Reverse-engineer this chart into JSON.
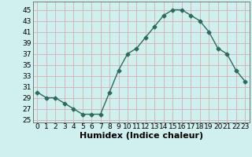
{
  "x": [
    0,
    1,
    2,
    3,
    4,
    5,
    6,
    7,
    8,
    9,
    10,
    11,
    12,
    13,
    14,
    15,
    16,
    17,
    18,
    19,
    20,
    21,
    22,
    23
  ],
  "y": [
    30,
    29,
    29,
    28,
    27,
    26,
    26,
    26,
    30,
    34,
    37,
    38,
    40,
    42,
    44,
    45,
    45,
    44,
    43,
    41,
    38,
    37,
    34,
    32
  ],
  "xlabel": "Humidex (Indice chaleur)",
  "ylim": [
    24.5,
    46.5
  ],
  "xlim": [
    -0.5,
    23.5
  ],
  "yticks": [
    25,
    27,
    29,
    31,
    33,
    35,
    37,
    39,
    41,
    43,
    45
  ],
  "xticks": [
    0,
    1,
    2,
    3,
    4,
    5,
    6,
    7,
    8,
    9,
    10,
    11,
    12,
    13,
    14,
    15,
    16,
    17,
    18,
    19,
    20,
    21,
    22,
    23
  ],
  "line_color": "#2d6b5e",
  "marker": "D",
  "marker_size": 2.5,
  "bg_color": "#cff0ee",
  "grid_color": "#d4b8b8",
  "tick_label_fontsize": 6.5,
  "xlabel_fontsize": 8
}
